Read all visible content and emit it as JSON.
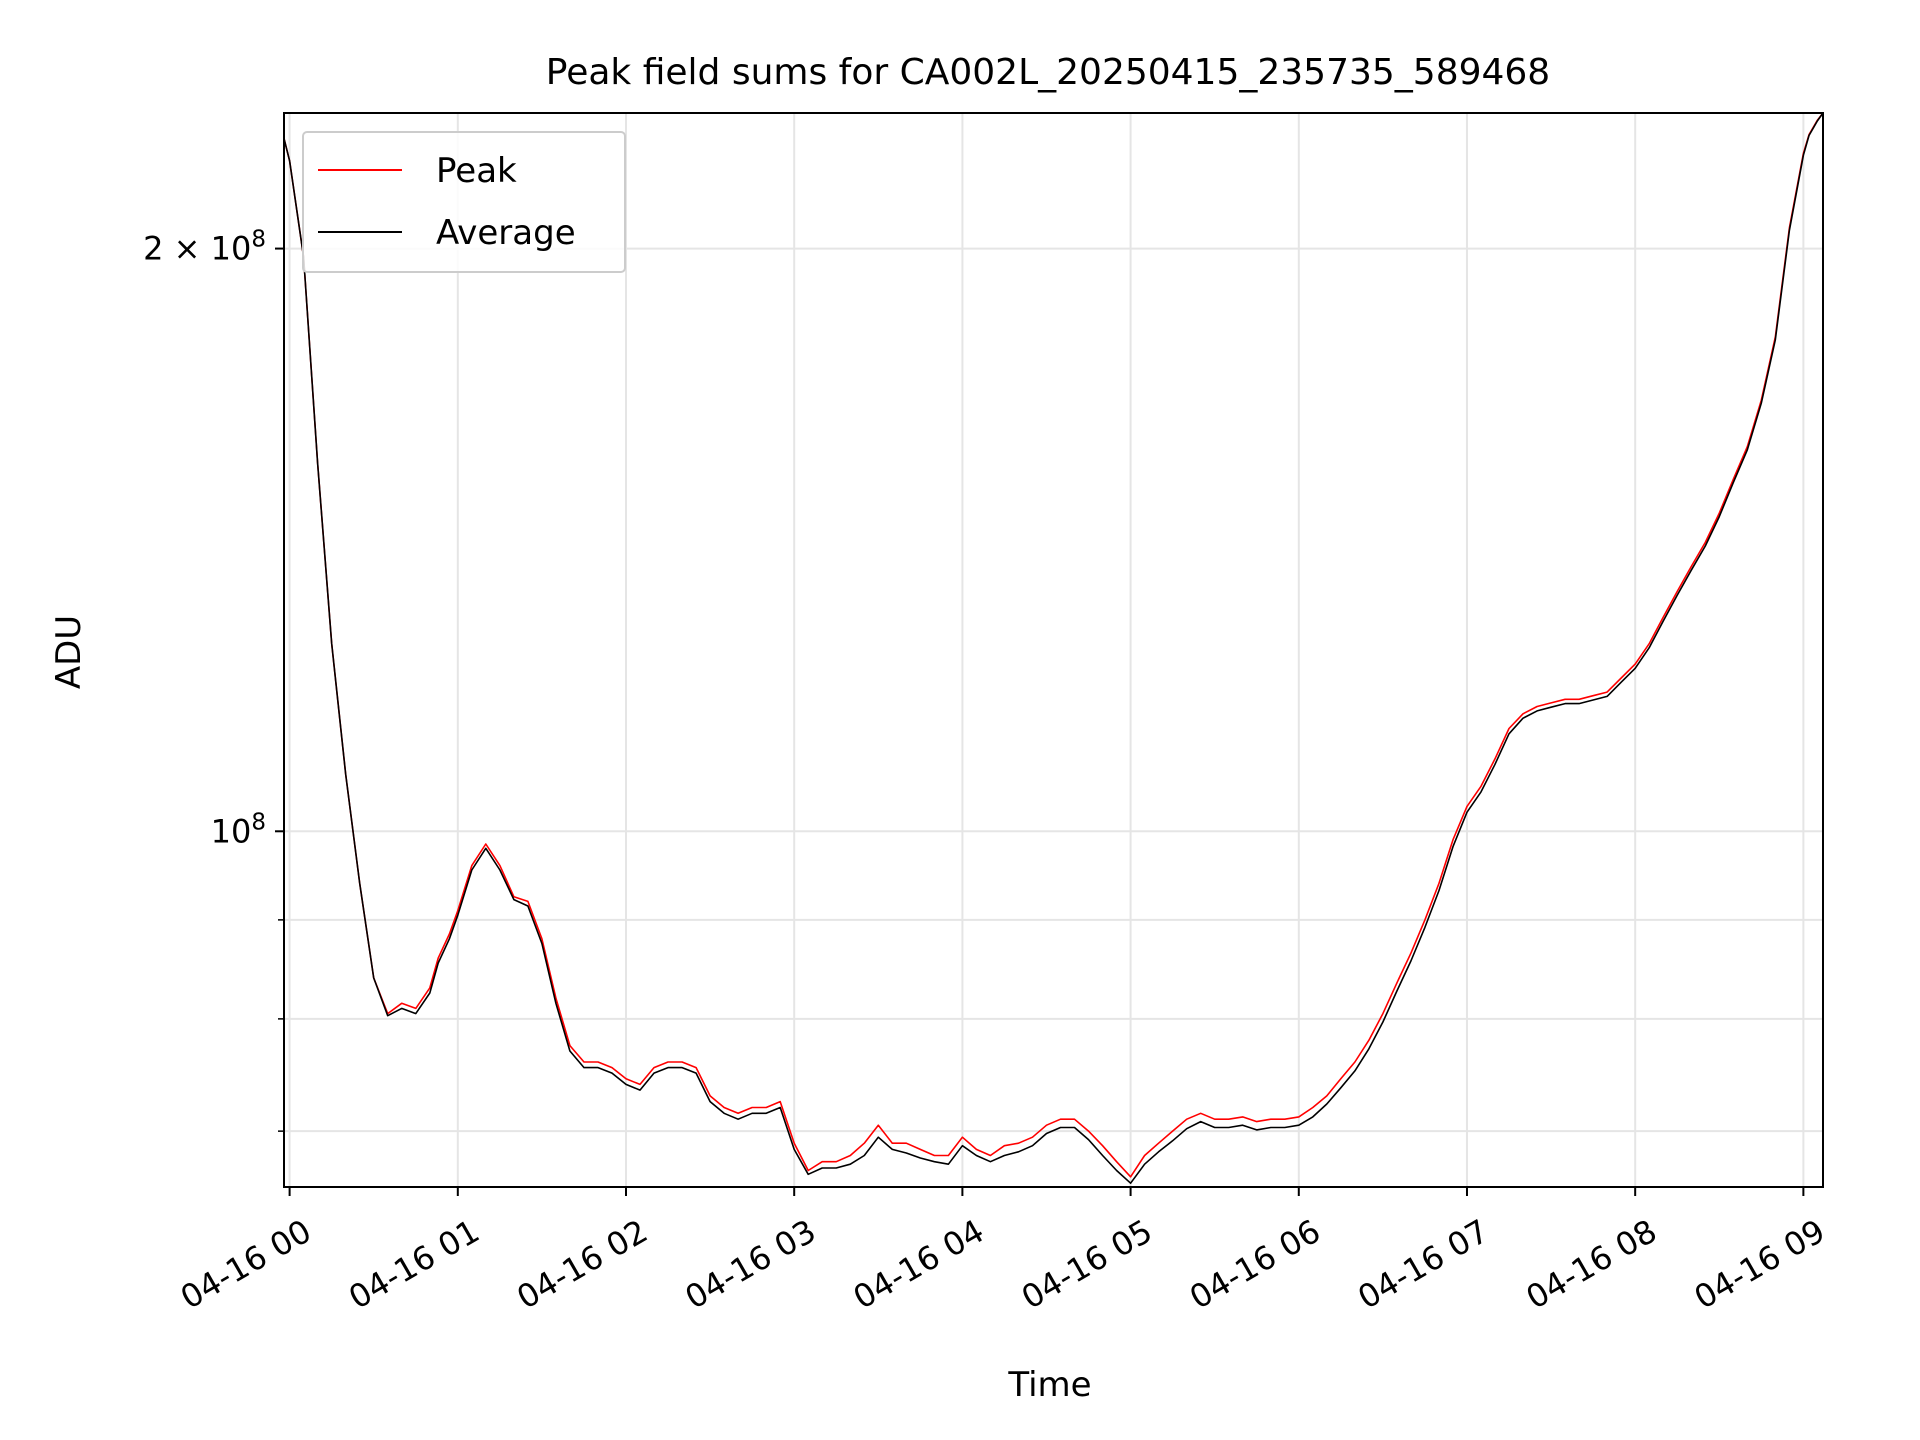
{
  "chart_data": {
    "type": "line",
    "title": "Peak field sums for CA002L_20250415_235735_589468",
    "xlabel": "Time",
    "ylabel": "ADU",
    "y_scale": "log",
    "grid": true,
    "legend_position": "upper-left",
    "xlim": [
      "2025-04-15 23:58",
      "2025-04-16 09:07"
    ],
    "ylim": [
      65500000,
      235000000
    ],
    "x_ticks": [
      {
        "value": "2025-04-16 00:00",
        "label": "04-16 00"
      },
      {
        "value": "2025-04-16 01:00",
        "label": "04-16 01"
      },
      {
        "value": "2025-04-16 02:00",
        "label": "04-16 02"
      },
      {
        "value": "2025-04-16 03:00",
        "label": "04-16 03"
      },
      {
        "value": "2025-04-16 04:00",
        "label": "04-16 04"
      },
      {
        "value": "2025-04-16 05:00",
        "label": "04-16 05"
      },
      {
        "value": "2025-04-16 06:00",
        "label": "04-16 06"
      },
      {
        "value": "2025-04-16 07:00",
        "label": "04-16 07"
      },
      {
        "value": "2025-04-16 08:00",
        "label": "04-16 08"
      },
      {
        "value": "2025-04-16 09:00",
        "label": "04-16 09"
      }
    ],
    "y_major_ticks": [
      {
        "value": 100000000,
        "label_base": "10",
        "label_exp": "8",
        "label_prefix": ""
      },
      {
        "value": 200000000,
        "label_base": "10",
        "label_exp": "8",
        "label_prefix": "2 × "
      }
    ],
    "y_minor_ticks": [
      70000000,
      80000000,
      90000000
    ],
    "series": [
      {
        "name": "Peak",
        "color": "#ff0000",
        "x": [
          "2025-04-15 23:58",
          "2025-04-16 00:00",
          "2025-04-16 00:05",
          "2025-04-16 00:10",
          "2025-04-16 00:15",
          "2025-04-16 00:20",
          "2025-04-16 00:25",
          "2025-04-16 00:30",
          "2025-04-16 00:35",
          "2025-04-16 00:40",
          "2025-04-16 00:45",
          "2025-04-16 00:50",
          "2025-04-16 00:53",
          "2025-04-16 00:57",
          "2025-04-16 01:00",
          "2025-04-16 01:05",
          "2025-04-16 01:10",
          "2025-04-16 01:15",
          "2025-04-16 01:20",
          "2025-04-16 01:25",
          "2025-04-16 01:30",
          "2025-04-16 01:35",
          "2025-04-16 01:40",
          "2025-04-16 01:45",
          "2025-04-16 01:50",
          "2025-04-16 01:55",
          "2025-04-16 02:00",
          "2025-04-16 02:05",
          "2025-04-16 02:10",
          "2025-04-16 02:15",
          "2025-04-16 02:20",
          "2025-04-16 02:25",
          "2025-04-16 02:30",
          "2025-04-16 02:35",
          "2025-04-16 02:40",
          "2025-04-16 02:45",
          "2025-04-16 02:50",
          "2025-04-16 02:55",
          "2025-04-16 03:00",
          "2025-04-16 03:05",
          "2025-04-16 03:10",
          "2025-04-16 03:15",
          "2025-04-16 03:20",
          "2025-04-16 03:25",
          "2025-04-16 03:30",
          "2025-04-16 03:35",
          "2025-04-16 03:40",
          "2025-04-16 03:45",
          "2025-04-16 03:50",
          "2025-04-16 03:55",
          "2025-04-16 04:00",
          "2025-04-16 04:05",
          "2025-04-16 04:10",
          "2025-04-16 04:15",
          "2025-04-16 04:20",
          "2025-04-16 04:25",
          "2025-04-16 04:30",
          "2025-04-16 04:35",
          "2025-04-16 04:40",
          "2025-04-16 04:45",
          "2025-04-16 04:50",
          "2025-04-16 04:55",
          "2025-04-16 05:00",
          "2025-04-16 05:05",
          "2025-04-16 05:10",
          "2025-04-16 05:15",
          "2025-04-16 05:20",
          "2025-04-16 05:25",
          "2025-04-16 05:30",
          "2025-04-16 05:35",
          "2025-04-16 05:40",
          "2025-04-16 05:45",
          "2025-04-16 05:50",
          "2025-04-16 05:55",
          "2025-04-16 06:00",
          "2025-04-16 06:05",
          "2025-04-16 06:10",
          "2025-04-16 06:15",
          "2025-04-16 06:20",
          "2025-04-16 06:25",
          "2025-04-16 06:30",
          "2025-04-16 06:35",
          "2025-04-16 06:40",
          "2025-04-16 06:45",
          "2025-04-16 06:50",
          "2025-04-16 06:55",
          "2025-04-16 07:00",
          "2025-04-16 07:05",
          "2025-04-16 07:10",
          "2025-04-16 07:15",
          "2025-04-16 07:20",
          "2025-04-16 07:25",
          "2025-04-16 07:30",
          "2025-04-16 07:35",
          "2025-04-16 07:40",
          "2025-04-16 07:45",
          "2025-04-16 07:50",
          "2025-04-16 07:55",
          "2025-04-16 08:00",
          "2025-04-16 08:05",
          "2025-04-16 08:10",
          "2025-04-16 08:15",
          "2025-04-16 08:20",
          "2025-04-16 08:25",
          "2025-04-16 08:30",
          "2025-04-16 08:35",
          "2025-04-16 08:40",
          "2025-04-16 08:45",
          "2025-04-16 08:50",
          "2025-04-16 08:55",
          "2025-04-16 09:00",
          "2025-04-16 09:02",
          "2025-04-16 09:05",
          "2025-04-16 09:07"
        ],
        "values": [
          228000000,
          222000000,
          198000000,
          155000000,
          125000000,
          107000000,
          94000000,
          84000000,
          80500000,
          81500000,
          81000000,
          83000000,
          86000000,
          88500000,
          91000000,
          96000000,
          98500000,
          96000000,
          92500000,
          92000000,
          88000000,
          82000000,
          77500000,
          76000000,
          76000000,
          75500000,
          74500000,
          74000000,
          75500000,
          76000000,
          76000000,
          75500000,
          73000000,
          72000000,
          71500000,
          72000000,
          72000000,
          72500000,
          69000000,
          66800000,
          67500000,
          67500000,
          68000000,
          69000000,
          70500000,
          69000000,
          69000000,
          68500000,
          68000000,
          68000000,
          69500000,
          68500000,
          68000000,
          68800000,
          69000000,
          69500000,
          70500000,
          71000000,
          71000000,
          70000000,
          68800000,
          67500000,
          66300000,
          68000000,
          69000000,
          70000000,
          71000000,
          71500000,
          71000000,
          71000000,
          71200000,
          70800000,
          71000000,
          71000000,
          71200000,
          72000000,
          73000000,
          74500000,
          76000000,
          78000000,
          80500000,
          83500000,
          86500000,
          90000000,
          94000000,
          99000000,
          103000000,
          105500000,
          109000000,
          113000000,
          115000000,
          116000000,
          116500000,
          117000000,
          117000000,
          117500000,
          118000000,
          120000000,
          122000000,
          125000000,
          129000000,
          133000000,
          137000000,
          141000000,
          146000000,
          152000000,
          158000000,
          167000000,
          180000000,
          205000000,
          224000000,
          229000000,
          233000000,
          235000000
        ]
      },
      {
        "name": "Average",
        "color": "#000000",
        "x": [
          "2025-04-15 23:58",
          "2025-04-16 00:00",
          "2025-04-16 00:05",
          "2025-04-16 00:10",
          "2025-04-16 00:15",
          "2025-04-16 00:20",
          "2025-04-16 00:25",
          "2025-04-16 00:30",
          "2025-04-16 00:35",
          "2025-04-16 00:40",
          "2025-04-16 00:45",
          "2025-04-16 00:50",
          "2025-04-16 00:53",
          "2025-04-16 00:57",
          "2025-04-16 01:00",
          "2025-04-16 01:05",
          "2025-04-16 01:10",
          "2025-04-16 01:15",
          "2025-04-16 01:20",
          "2025-04-16 01:25",
          "2025-04-16 01:30",
          "2025-04-16 01:35",
          "2025-04-16 01:40",
          "2025-04-16 01:45",
          "2025-04-16 01:50",
          "2025-04-16 01:55",
          "2025-04-16 02:00",
          "2025-04-16 02:05",
          "2025-04-16 02:10",
          "2025-04-16 02:15",
          "2025-04-16 02:20",
          "2025-04-16 02:25",
          "2025-04-16 02:30",
          "2025-04-16 02:35",
          "2025-04-16 02:40",
          "2025-04-16 02:45",
          "2025-04-16 02:50",
          "2025-04-16 02:55",
          "2025-04-16 03:00",
          "2025-04-16 03:05",
          "2025-04-16 03:10",
          "2025-04-16 03:15",
          "2025-04-16 03:20",
          "2025-04-16 03:25",
          "2025-04-16 03:30",
          "2025-04-16 03:35",
          "2025-04-16 03:40",
          "2025-04-16 03:45",
          "2025-04-16 03:50",
          "2025-04-16 03:55",
          "2025-04-16 04:00",
          "2025-04-16 04:05",
          "2025-04-16 04:10",
          "2025-04-16 04:15",
          "2025-04-16 04:20",
          "2025-04-16 04:25",
          "2025-04-16 04:30",
          "2025-04-16 04:35",
          "2025-04-16 04:40",
          "2025-04-16 04:45",
          "2025-04-16 04:50",
          "2025-04-16 04:55",
          "2025-04-16 05:00",
          "2025-04-16 05:05",
          "2025-04-16 05:10",
          "2025-04-16 05:15",
          "2025-04-16 05:20",
          "2025-04-16 05:25",
          "2025-04-16 05:30",
          "2025-04-16 05:35",
          "2025-04-16 05:40",
          "2025-04-16 05:45",
          "2025-04-16 05:50",
          "2025-04-16 05:55",
          "2025-04-16 06:00",
          "2025-04-16 06:05",
          "2025-04-16 06:10",
          "2025-04-16 06:15",
          "2025-04-16 06:20",
          "2025-04-16 06:25",
          "2025-04-16 06:30",
          "2025-04-16 06:35",
          "2025-04-16 06:40",
          "2025-04-16 06:45",
          "2025-04-16 06:50",
          "2025-04-16 06:55",
          "2025-04-16 07:00",
          "2025-04-16 07:05",
          "2025-04-16 07:10",
          "2025-04-16 07:15",
          "2025-04-16 07:20",
          "2025-04-16 07:25",
          "2025-04-16 07:30",
          "2025-04-16 07:35",
          "2025-04-16 07:40",
          "2025-04-16 07:45",
          "2025-04-16 07:50",
          "2025-04-16 07:55",
          "2025-04-16 08:00",
          "2025-04-16 08:05",
          "2025-04-16 08:10",
          "2025-04-16 08:15",
          "2025-04-16 08:20",
          "2025-04-16 08:25",
          "2025-04-16 08:30",
          "2025-04-16 08:35",
          "2025-04-16 08:40",
          "2025-04-16 08:45",
          "2025-04-16 08:50",
          "2025-04-16 08:55",
          "2025-04-16 09:00",
          "2025-04-16 09:02",
          "2025-04-16 09:05",
          "2025-04-16 09:07"
        ],
        "values": [
          228000000,
          222000000,
          198000000,
          155000000,
          125000000,
          107000000,
          94000000,
          84000000,
          80300000,
          81000000,
          80500000,
          82500000,
          85500000,
          88000000,
          90500000,
          95500000,
          98000000,
          95500000,
          92200000,
          91500000,
          87500000,
          81500000,
          77000000,
          75500000,
          75500000,
          75000000,
          74000000,
          73500000,
          75000000,
          75500000,
          75500000,
          75000000,
          72500000,
          71500000,
          71000000,
          71500000,
          71500000,
          72000000,
          68500000,
          66500000,
          67000000,
          67000000,
          67300000,
          68000000,
          69500000,
          68500000,
          68200000,
          67800000,
          67500000,
          67300000,
          68800000,
          68000000,
          67500000,
          68000000,
          68300000,
          68800000,
          69800000,
          70300000,
          70300000,
          69300000,
          68000000,
          66800000,
          65800000,
          67300000,
          68300000,
          69200000,
          70200000,
          70800000,
          70300000,
          70300000,
          70500000,
          70100000,
          70300000,
          70300000,
          70500000,
          71200000,
          72300000,
          73700000,
          75200000,
          77200000,
          79700000,
          82700000,
          85700000,
          89200000,
          93200000,
          98200000,
          102300000,
          104800000,
          108300000,
          112300000,
          114400000,
          115400000,
          115900000,
          116400000,
          116400000,
          116900000,
          117400000,
          119400000,
          121400000,
          124400000,
          128400000,
          132400000,
          136400000,
          140400000,
          145400000,
          151400000,
          157400000,
          166400000,
          179400000,
          204400000,
          223500000,
          228800000,
          232800000,
          235000000
        ]
      }
    ]
  }
}
